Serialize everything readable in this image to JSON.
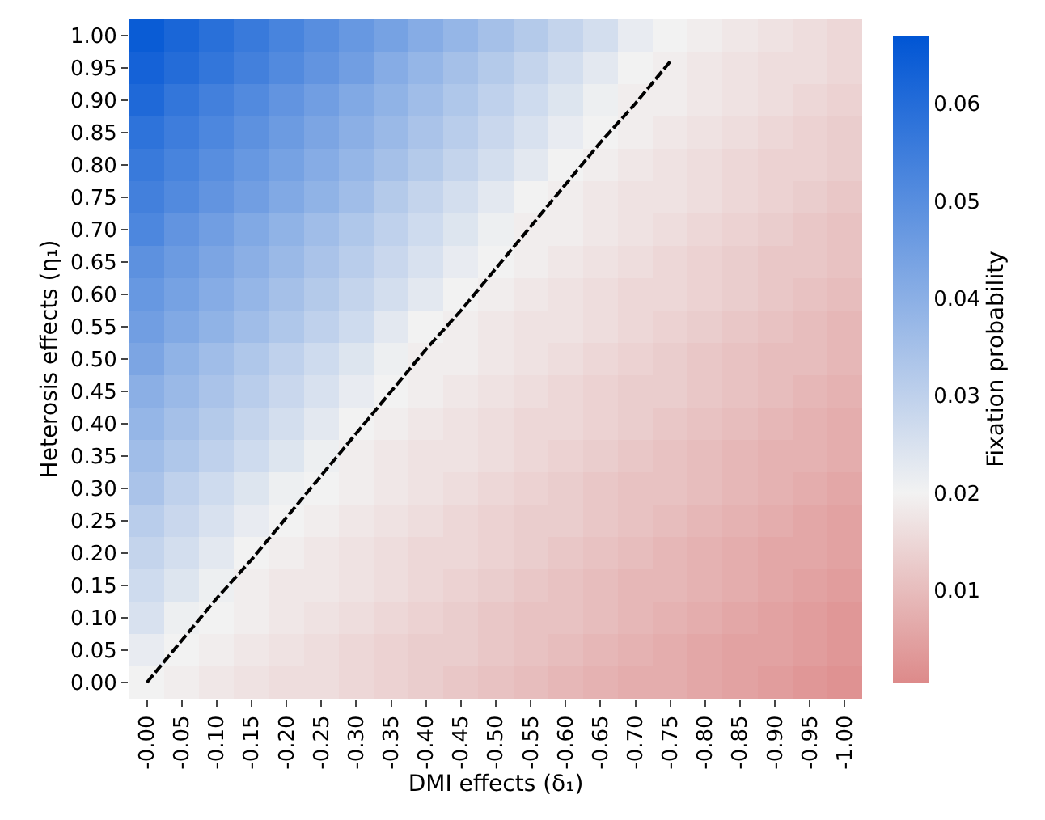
{
  "chart_data": {
    "type": "heatmap",
    "xlabel": "DMI effects (δ₁)",
    "ylabel": "Heterosis effects (η₁)",
    "clabel": "Fixation probability",
    "categories": [
      "-0.00",
      "-0.05",
      "-0.10",
      "-0.15",
      "-0.20",
      "-0.25",
      "-0.30",
      "-0.35",
      "-0.40",
      "-0.45",
      "-0.50",
      "-0.55",
      "-0.60",
      "-0.65",
      "-0.70",
      "-0.75",
      "-0.80",
      "-0.85",
      "-0.90",
      "-0.95",
      "-1.00"
    ],
    "y_categories": [
      "1.00",
      "0.95",
      "0.90",
      "0.85",
      "0.80",
      "0.75",
      "0.70",
      "0.65",
      "0.60",
      "0.55",
      "0.50",
      "0.45",
      "0.40",
      "0.35",
      "0.30",
      "0.25",
      "0.20",
      "0.15",
      "0.10",
      "0.05",
      "0.00"
    ],
    "cells": [
      [
        0.065,
        0.062,
        0.059,
        0.056,
        0.053,
        0.05,
        0.047,
        0.044,
        0.041,
        0.038,
        0.035,
        0.032,
        0.029,
        0.026,
        0.022,
        0.02,
        0.019,
        0.018,
        0.017,
        0.016,
        0.015
      ],
      [
        0.063,
        0.06,
        0.057,
        0.054,
        0.051,
        0.048,
        0.045,
        0.041,
        0.038,
        0.035,
        0.032,
        0.029,
        0.026,
        0.023,
        0.02,
        0.019,
        0.018,
        0.017,
        0.016,
        0.016,
        0.015
      ],
      [
        0.061,
        0.057,
        0.054,
        0.051,
        0.048,
        0.045,
        0.042,
        0.039,
        0.036,
        0.033,
        0.03,
        0.027,
        0.024,
        0.021,
        0.019,
        0.019,
        0.018,
        0.017,
        0.016,
        0.015,
        0.014
      ],
      [
        0.058,
        0.055,
        0.052,
        0.049,
        0.046,
        0.043,
        0.04,
        0.037,
        0.034,
        0.031,
        0.028,
        0.025,
        0.022,
        0.02,
        0.019,
        0.018,
        0.017,
        0.016,
        0.015,
        0.014,
        0.013
      ],
      [
        0.056,
        0.053,
        0.05,
        0.047,
        0.044,
        0.041,
        0.038,
        0.035,
        0.032,
        0.029,
        0.026,
        0.023,
        0.02,
        0.019,
        0.018,
        0.017,
        0.016,
        0.015,
        0.014,
        0.014,
        0.013
      ],
      [
        0.054,
        0.051,
        0.048,
        0.045,
        0.042,
        0.039,
        0.036,
        0.032,
        0.029,
        0.026,
        0.023,
        0.02,
        0.019,
        0.018,
        0.017,
        0.017,
        0.016,
        0.015,
        0.014,
        0.013,
        0.012
      ],
      [
        0.052,
        0.048,
        0.045,
        0.042,
        0.039,
        0.036,
        0.033,
        0.03,
        0.027,
        0.024,
        0.021,
        0.019,
        0.019,
        0.018,
        0.017,
        0.016,
        0.015,
        0.014,
        0.013,
        0.012,
        0.011
      ],
      [
        0.049,
        0.046,
        0.043,
        0.04,
        0.037,
        0.034,
        0.031,
        0.028,
        0.025,
        0.022,
        0.02,
        0.019,
        0.018,
        0.017,
        0.016,
        0.015,
        0.014,
        0.013,
        0.012,
        0.012,
        0.011
      ],
      [
        0.047,
        0.044,
        0.041,
        0.038,
        0.035,
        0.032,
        0.029,
        0.026,
        0.023,
        0.02,
        0.019,
        0.018,
        0.017,
        0.016,
        0.015,
        0.015,
        0.014,
        0.013,
        0.012,
        0.011,
        0.01
      ],
      [
        0.045,
        0.042,
        0.039,
        0.036,
        0.033,
        0.03,
        0.027,
        0.023,
        0.02,
        0.019,
        0.018,
        0.017,
        0.017,
        0.016,
        0.015,
        0.014,
        0.013,
        0.012,
        0.011,
        0.01,
        0.009
      ],
      [
        0.043,
        0.039,
        0.036,
        0.033,
        0.03,
        0.027,
        0.024,
        0.021,
        0.019,
        0.019,
        0.018,
        0.017,
        0.016,
        0.015,
        0.014,
        0.013,
        0.012,
        0.011,
        0.01,
        0.01,
        0.009
      ],
      [
        0.04,
        0.037,
        0.034,
        0.031,
        0.028,
        0.025,
        0.022,
        0.02,
        0.019,
        0.018,
        0.017,
        0.016,
        0.015,
        0.014,
        0.013,
        0.013,
        0.012,
        0.011,
        0.01,
        0.009,
        0.008
      ],
      [
        0.038,
        0.035,
        0.032,
        0.029,
        0.026,
        0.023,
        0.02,
        0.019,
        0.018,
        0.017,
        0.016,
        0.015,
        0.015,
        0.014,
        0.013,
        0.012,
        0.011,
        0.01,
        0.009,
        0.008,
        0.007
      ],
      [
        0.036,
        0.033,
        0.03,
        0.027,
        0.024,
        0.021,
        0.019,
        0.018,
        0.017,
        0.017,
        0.016,
        0.015,
        0.014,
        0.013,
        0.012,
        0.011,
        0.01,
        0.009,
        0.008,
        0.008,
        0.007
      ],
      [
        0.034,
        0.03,
        0.027,
        0.024,
        0.021,
        0.02,
        0.019,
        0.018,
        0.017,
        0.016,
        0.015,
        0.014,
        0.013,
        0.012,
        0.011,
        0.011,
        0.01,
        0.009,
        0.008,
        0.007,
        0.006
      ],
      [
        0.031,
        0.028,
        0.025,
        0.022,
        0.02,
        0.019,
        0.018,
        0.017,
        0.016,
        0.015,
        0.014,
        0.013,
        0.013,
        0.012,
        0.011,
        0.01,
        0.009,
        0.008,
        0.007,
        0.006,
        0.005
      ],
      [
        0.029,
        0.026,
        0.023,
        0.02,
        0.019,
        0.018,
        0.017,
        0.016,
        0.015,
        0.015,
        0.014,
        0.013,
        0.012,
        0.011,
        0.01,
        0.009,
        0.008,
        0.007,
        0.006,
        0.006,
        0.005
      ],
      [
        0.027,
        0.024,
        0.021,
        0.019,
        0.018,
        0.018,
        0.017,
        0.016,
        0.015,
        0.014,
        0.013,
        0.012,
        0.011,
        0.01,
        0.009,
        0.009,
        0.008,
        0.007,
        0.006,
        0.005,
        0.004
      ],
      [
        0.025,
        0.021,
        0.02,
        0.019,
        0.018,
        0.017,
        0.016,
        0.015,
        0.014,
        0.013,
        0.012,
        0.011,
        0.011,
        0.01,
        0.009,
        0.008,
        0.007,
        0.006,
        0.005,
        0.004,
        0.003
      ],
      [
        0.022,
        0.02,
        0.019,
        0.018,
        0.017,
        0.016,
        0.015,
        0.014,
        0.013,
        0.013,
        0.012,
        0.011,
        0.01,
        0.009,
        0.008,
        0.007,
        0.006,
        0.005,
        0.005,
        0.004,
        0.003
      ],
      [
        0.02,
        0.019,
        0.018,
        0.017,
        0.016,
        0.016,
        0.015,
        0.014,
        0.013,
        0.012,
        0.011,
        0.01,
        0.009,
        0.008,
        0.007,
        0.007,
        0.006,
        0.005,
        0.004,
        0.003,
        0.002
      ]
    ],
    "clim": [
      0.0005,
      0.067
    ],
    "cticks": [
      0.01,
      0.02,
      0.03,
      0.04,
      0.05,
      0.06
    ],
    "series": [
      {
        "type": "line",
        "values": [
          20,
          18.7,
          17.4,
          16.2,
          14.9,
          13.6,
          12.3,
          11.0,
          9.7,
          8.5,
          7.2,
          5.9,
          4.6,
          3.3,
          2.1,
          0.8,
          null,
          null,
          null,
          null,
          null
        ],
        "color": "#000000",
        "line_style": "dashed"
      }
    ]
  }
}
